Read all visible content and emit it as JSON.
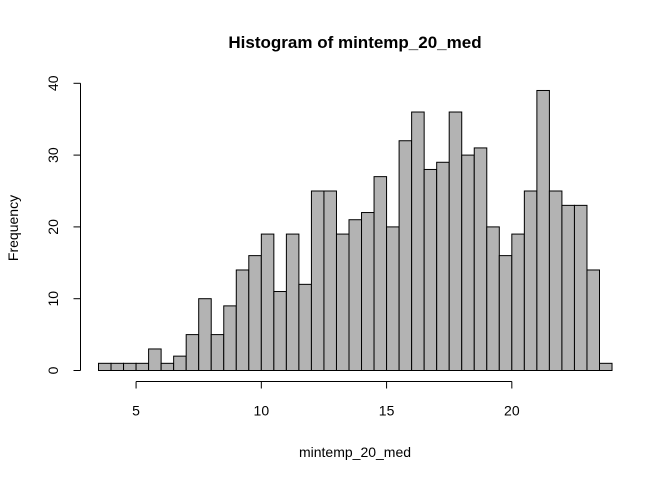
{
  "chart_data": {
    "type": "bar",
    "title": "Histogram of mintemp_20_med",
    "xlabel": "mintemp_20_med",
    "ylabel": "Frequency",
    "xlim": [
      3.5,
      24
    ],
    "ylim": [
      0,
      40
    ],
    "x_ticks": [
      5,
      10,
      15,
      20
    ],
    "y_ticks": [
      0,
      10,
      20,
      30,
      40
    ],
    "bin_width": 0.5,
    "bin_start": 3.5,
    "values": [
      1,
      1,
      1,
      1,
      3,
      1,
      2,
      5,
      10,
      5,
      9,
      14,
      16,
      19,
      11,
      19,
      12,
      25,
      25,
      19,
      21,
      22,
      27,
      20,
      32,
      36,
      28,
      29,
      36,
      30,
      31,
      20,
      16,
      19,
      25,
      39,
      25,
      23,
      23,
      14,
      1
    ],
    "bar_color": "#b3b3b3",
    "grid": false
  }
}
